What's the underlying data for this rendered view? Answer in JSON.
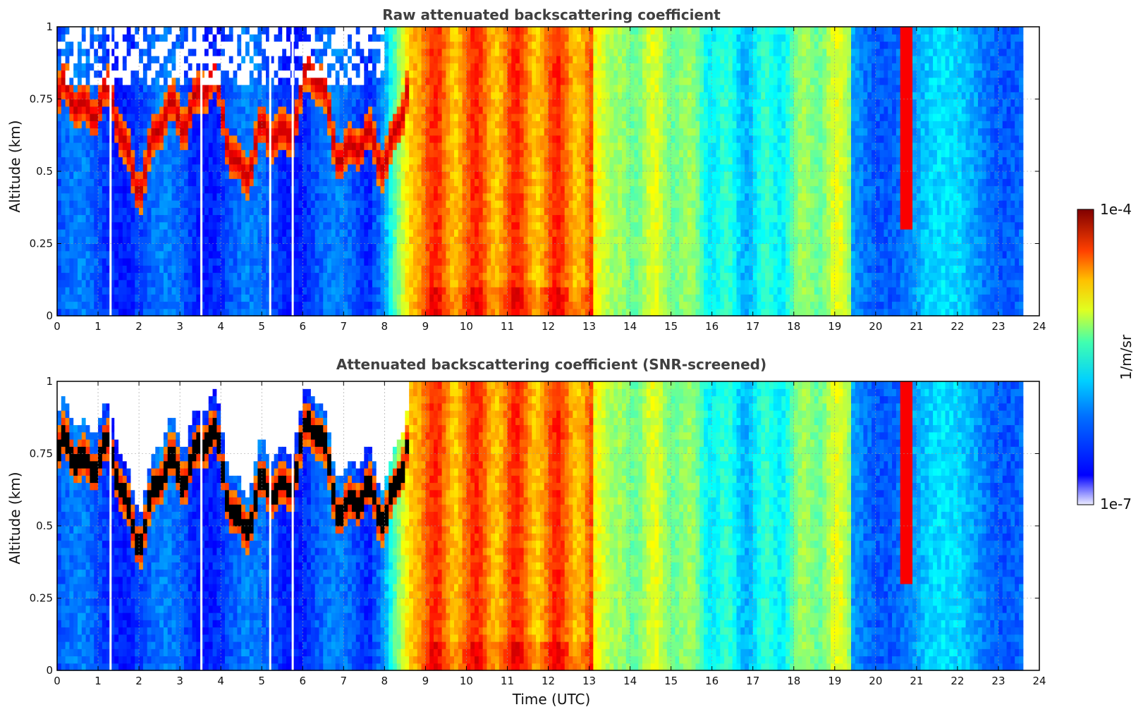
{
  "chart_data": [
    {
      "type": "heatmap",
      "title": "Raw attenuated backscattering coefficient",
      "xlabel": "",
      "ylabel": "Altitude (km)",
      "xlim": [
        0,
        24
      ],
      "ylim": [
        0,
        1
      ],
      "xticks": [
        "0",
        "1",
        "2",
        "3",
        "4",
        "5",
        "6",
        "7",
        "8",
        "9",
        "10",
        "11",
        "12",
        "13",
        "14",
        "15",
        "16",
        "17",
        "18",
        "19",
        "20",
        "21",
        "22",
        "23",
        "24"
      ],
      "yticks": [
        "0",
        "0.25",
        "0.5",
        "0.75",
        "1"
      ],
      "data_end_hour": 23.6,
      "time_segments_utc": [
        {
          "start": 0,
          "end": 8,
          "regime": "low-level blue background, red cloud layer near 0.55-0.9 km"
        },
        {
          "start": 8,
          "end": 13,
          "regime": "high values (yellow-red) throughout column"
        },
        {
          "start": 13,
          "end": 19.5,
          "regime": "moderate values (cyan-green-yellow)"
        },
        {
          "start": 19.5,
          "end": 23.6,
          "regime": "low values (blue-cyan), thin red cloud near 20.8"
        }
      ]
    },
    {
      "type": "heatmap",
      "title": "Attenuated backscattering coefficient (SNR-screened)",
      "xlabel": "Time (UTC)",
      "ylabel": "Altitude (km)",
      "xlim": [
        0,
        24
      ],
      "ylim": [
        0,
        1
      ],
      "xticks": [
        "0",
        "1",
        "2",
        "3",
        "4",
        "5",
        "6",
        "7",
        "8",
        "9",
        "10",
        "11",
        "12",
        "13",
        "14",
        "15",
        "16",
        "17",
        "18",
        "19",
        "20",
        "21",
        "22",
        "23",
        "24"
      ],
      "yticks": [
        "0",
        "0.25",
        "0.5",
        "0.75",
        "1"
      ],
      "data_end_hour": 23.6
    }
  ],
  "colorbar": {
    "label": "1/m/sr",
    "max_label": "1e-4",
    "min_label": "1e-7",
    "colormap": "jet"
  }
}
